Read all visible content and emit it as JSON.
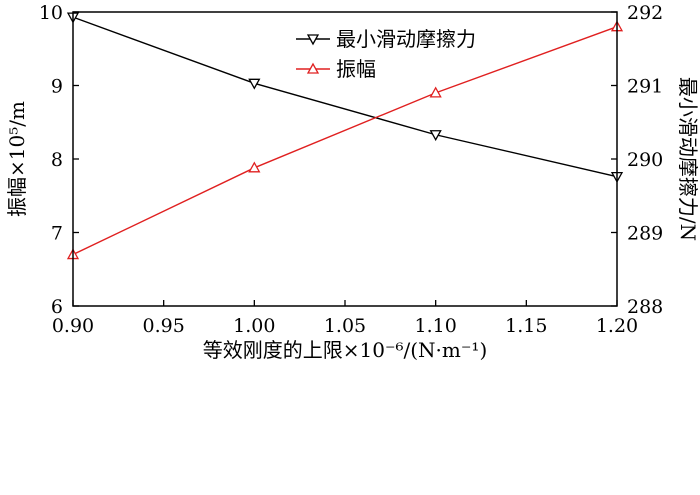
{
  "chart_data": {
    "type": "line",
    "xlabel": "等效刚度的上限×10⁻⁶/(N·m⁻¹)",
    "ylabel_left": "振幅×10⁵/m",
    "ylabel_right": "最小滑动摩擦力/N",
    "xlim": [
      0.9,
      1.2
    ],
    "ylim_left": [
      6,
      10
    ],
    "ylim_right": [
      288,
      292
    ],
    "x_ticks": [
      "0.90",
      "0.95",
      "1.00",
      "1.05",
      "1.10",
      "1.15",
      "1.20"
    ],
    "y_left_ticks": [
      "6",
      "7",
      "8",
      "9",
      "10"
    ],
    "y_right_ticks": [
      "288",
      "289",
      "290",
      "291",
      "292"
    ],
    "legend_position": "top-center",
    "grid": false,
    "series": [
      {
        "name": "最小滑动摩擦力",
        "axis": "right",
        "color": "#000000",
        "marker": "triangle-down",
        "x": [
          0.9,
          1.0,
          1.1,
          1.2
        ],
        "y": [
          291.93,
          291.03,
          290.33,
          289.76
        ]
      },
      {
        "name": "振幅",
        "axis": "left",
        "color": "#e02020",
        "marker": "triangle-up",
        "x": [
          0.9,
          1.0,
          1.1,
          1.2
        ],
        "y": [
          6.7,
          7.88,
          8.9,
          9.8
        ]
      }
    ]
  }
}
